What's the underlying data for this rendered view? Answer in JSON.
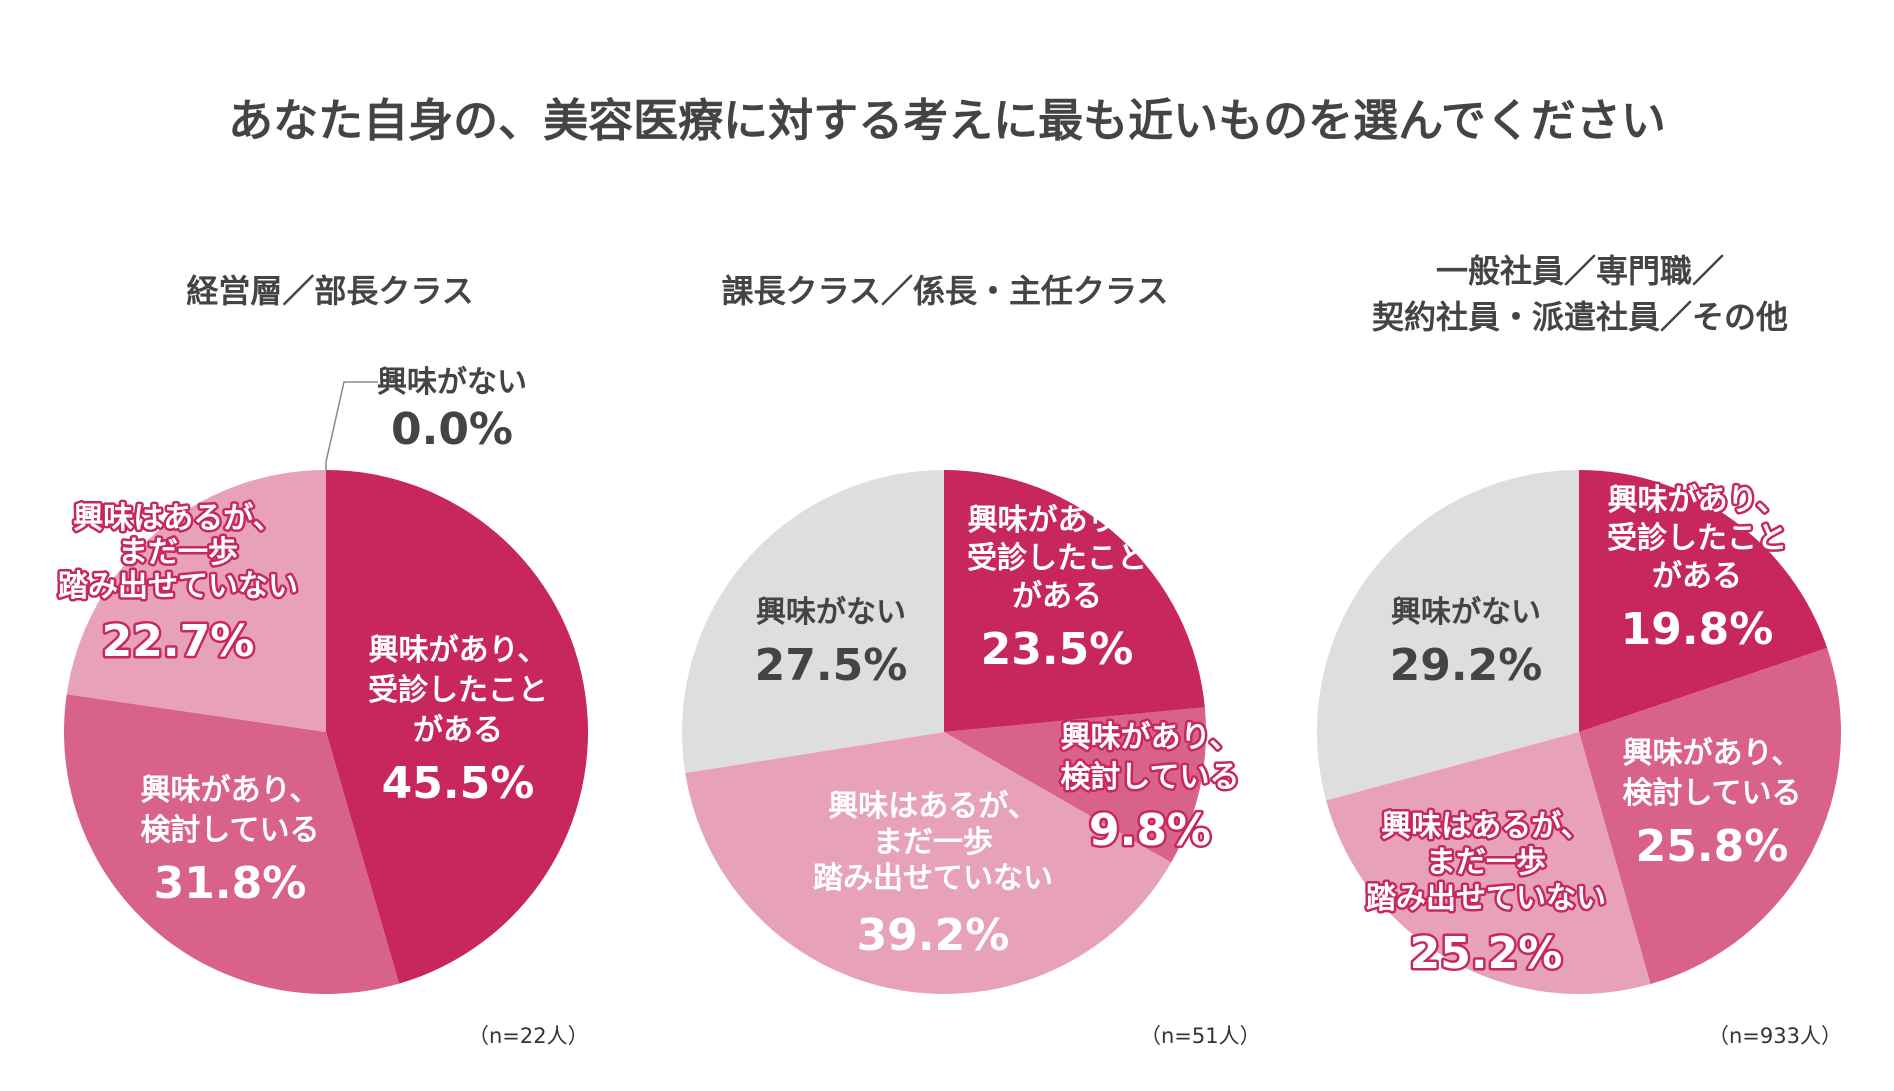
{
  "title": "あなた自身の、美容医療に対する考えに最も近いものを選んでください",
  "colors": {
    "consulted": "#c7275b",
    "considering": "#d9628a",
    "not_yet": "#e8a2b8",
    "not_interested": "#dedede",
    "text_dark": "#444444",
    "text_light": "#ffffff"
  },
  "chart_data": [
    {
      "type": "pie",
      "title": "経営層／部長クラス",
      "n_label": "（n=22人）",
      "slices": [
        {
          "key": "consulted",
          "label_lines": [
            "興味があり、",
            "受診したこと",
            "がある"
          ],
          "value": 45.5,
          "value_label": "45.5%"
        },
        {
          "key": "considering",
          "label_lines": [
            "興味があり、",
            "検討している"
          ],
          "value": 31.8,
          "value_label": "31.8%"
        },
        {
          "key": "not_yet",
          "label_lines": [
            "興味はあるが、",
            "まだ一歩",
            "踏み出せていない"
          ],
          "value": 22.7,
          "value_label": "22.7%"
        },
        {
          "key": "not_interested",
          "label_lines": [
            "興味がない"
          ],
          "value": 0.0,
          "value_label": "0.0%"
        }
      ]
    },
    {
      "type": "pie",
      "title": "課長クラス／係長・主任クラス",
      "n_label": "（n=51人）",
      "slices": [
        {
          "key": "consulted",
          "label_lines": [
            "興味があり、",
            "受診したこと",
            "がある"
          ],
          "value": 23.5,
          "value_label": "23.5%"
        },
        {
          "key": "considering",
          "label_lines": [
            "興味があり、",
            "検討している"
          ],
          "value": 9.8,
          "value_label": "9.8%"
        },
        {
          "key": "not_yet",
          "label_lines": [
            "興味はあるが、",
            "まだ一歩",
            "踏み出せていない"
          ],
          "value": 39.2,
          "value_label": "39.2%"
        },
        {
          "key": "not_interested",
          "label_lines": [
            "興味がない"
          ],
          "value": 27.5,
          "value_label": "27.5%"
        }
      ]
    },
    {
      "type": "pie",
      "title_lines": [
        "一般社員／専門職／",
        "契約社員・派遣社員／その他"
      ],
      "n_label": "（n=933人）",
      "slices": [
        {
          "key": "consulted",
          "label_lines": [
            "興味があり、",
            "受診したこと",
            "がある"
          ],
          "value": 19.8,
          "value_label": "19.8%"
        },
        {
          "key": "considering",
          "label_lines": [
            "興味があり、",
            "検討している"
          ],
          "value": 25.8,
          "value_label": "25.8%"
        },
        {
          "key": "not_yet",
          "label_lines": [
            "興味はあるが、",
            "まだ一歩",
            "踏み出せていない"
          ],
          "value": 25.2,
          "value_label": "25.2%"
        },
        {
          "key": "not_interested",
          "label_lines": [
            "興味がない"
          ],
          "value": 29.2,
          "value_label": "29.2%"
        }
      ]
    }
  ]
}
